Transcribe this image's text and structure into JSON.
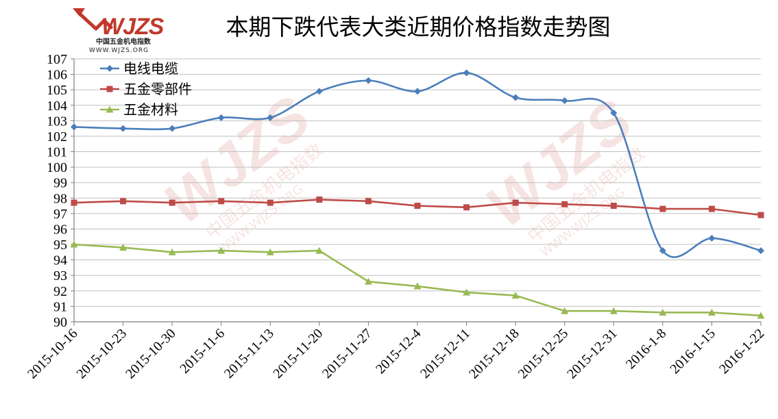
{
  "logo": {
    "brand": "WJZS",
    "subtitle": "中国五金机电指数",
    "url": "WWW.WJZS.ORG"
  },
  "watermark": {
    "brand": "WJZS",
    "subtitle": "中国五金机电指数",
    "url": "WWW.WJZS.ORG"
  },
  "chart_data": {
    "type": "line",
    "title": "本期下跌代表大类近期价格指数走势图",
    "categories": [
      "2015-10-16",
      "2015-10-23",
      "2015-10-30",
      "2015-11-6",
      "2015-11-13",
      "2015-11-20",
      "2015-11-27",
      "2015-12-4",
      "2015-12-11",
      "2015-12-18",
      "2015-12-25",
      "2015-12-31",
      "2016-1-8",
      "2016-1-15",
      "2016-1-22"
    ],
    "ylim": [
      90,
      107
    ],
    "yticks": [
      90,
      91,
      92,
      93,
      94,
      95,
      96,
      97,
      98,
      99,
      100,
      101,
      102,
      103,
      104,
      105,
      106,
      107
    ],
    "grid": true,
    "legend_position": "top-left",
    "series": [
      {
        "name": "电线电缆",
        "color": "#4a7ebb",
        "marker": "diamond",
        "smooth": true,
        "values": [
          102.6,
          102.5,
          102.5,
          103.2,
          103.2,
          104.9,
          105.6,
          104.9,
          106.1,
          104.5,
          104.3,
          103.5,
          94.6,
          95.4,
          94.6
        ]
      },
      {
        "name": "五金零部件",
        "color": "#be4b48",
        "marker": "square",
        "smooth": false,
        "values": [
          97.7,
          97.8,
          97.7,
          97.8,
          97.7,
          97.9,
          97.8,
          97.5,
          97.4,
          97.7,
          97.6,
          97.5,
          97.3,
          97.3,
          96.9
        ]
      },
      {
        "name": "五金材料",
        "color": "#98b954",
        "marker": "triangle",
        "smooth": false,
        "values": [
          95.0,
          94.8,
          94.5,
          94.6,
          94.5,
          94.6,
          92.6,
          92.3,
          91.9,
          91.7,
          90.7,
          90.7,
          90.6,
          90.6,
          90.4
        ]
      }
    ]
  }
}
